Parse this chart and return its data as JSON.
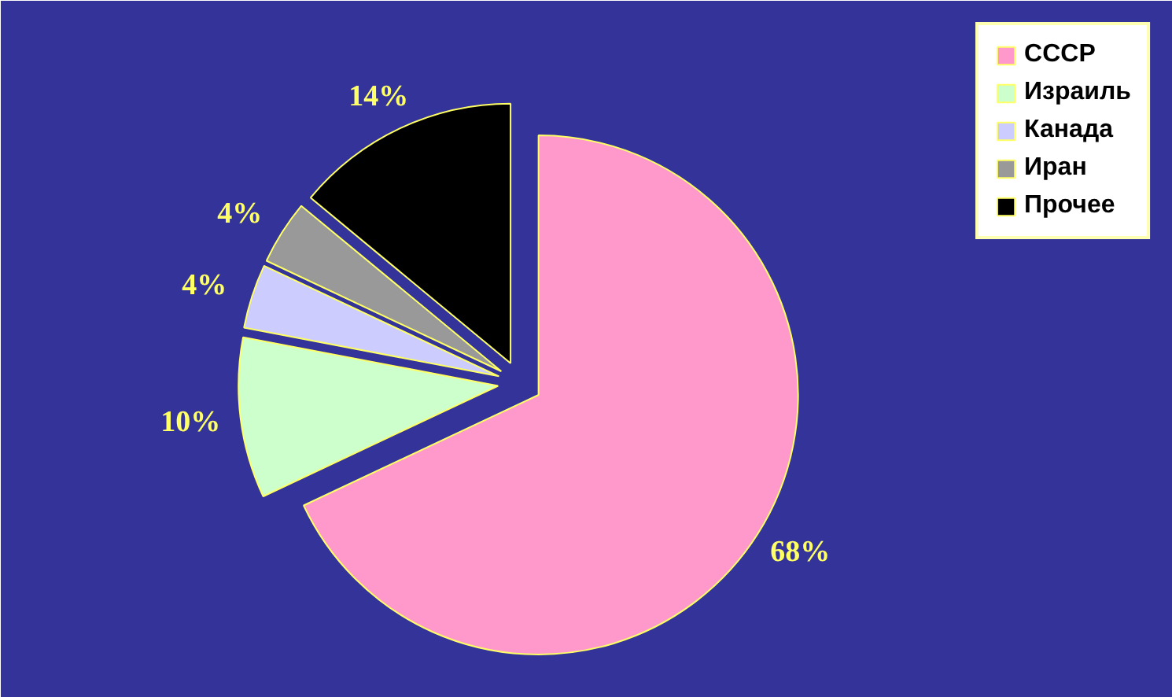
{
  "chart_data": {
    "type": "pie",
    "categories": [
      "СССР",
      "Израиль",
      "Канада",
      "Иран",
      "Прочее"
    ],
    "values": [
      68,
      10,
      4,
      4,
      14
    ],
    "colors": [
      "#ff99cc",
      "#ccffcc",
      "#ccccff",
      "#999999",
      "#000000"
    ],
    "value_labels": [
      "68%",
      "10%",
      "4%",
      "4%",
      "14%"
    ],
    "legend": "top right"
  }
}
